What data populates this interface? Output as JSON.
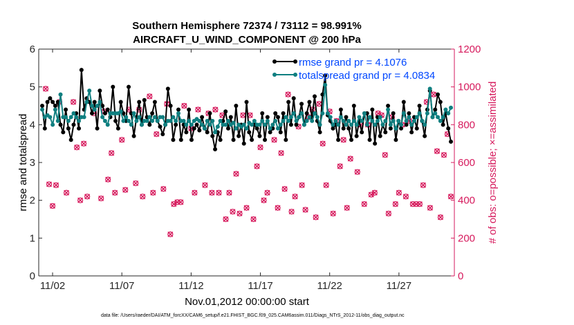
{
  "chart_data": {
    "type": "line",
    "title": "Southern Hemisphere 72374 / 73112 = 98.991%",
    "subtitle": "AIRCRAFT_U_WIND_COMPONENT @ 200 hPa",
    "xlabel": "Nov.01,2012 00:00:00 start",
    "ylabel": "rmse and totalspread",
    "y2label": "# of obs: o=possible; ×=assimilated",
    "footnote": "data file: /Users/raeder/DAI/ATM_forcXX/CAM6_setup/f.e21.FHIST_BGC.f09_025.CAM6assim.011/Diags_NTrS_2012-11/obs_diag_output.nc",
    "xlim": [
      0.5,
      30.5
    ],
    "ylim": [
      0,
      6
    ],
    "y2lim": [
      0,
      1200
    ],
    "x_ticks": [
      1.5,
      6.5,
      11.5,
      16.5,
      21.5,
      26.5
    ],
    "x_tick_labels": [
      "11/02",
      "11/07",
      "11/12",
      "11/17",
      "11/22",
      "11/27"
    ],
    "y_ticks": [
      0,
      1,
      2,
      3,
      4,
      5,
      6
    ],
    "y_tick_labels": [
      "0",
      "1",
      "2",
      "3",
      "4",
      "5",
      "6"
    ],
    "y2_ticks": [
      0,
      200,
      400,
      600,
      800,
      1000,
      1200
    ],
    "y2_tick_labels": [
      "0",
      "200",
      "400",
      "600",
      "800",
      "1000",
      "1200"
    ],
    "colors": {
      "rmse": "#000000",
      "spread": "#0f7f80",
      "obs": "#d6195c",
      "legend_text": "#0047ff"
    },
    "series": [
      {
        "name": "rmse grand pr = 4.1076",
        "color": "#000000",
        "values": [
          4.5,
          3.9,
          4.6,
          4.7,
          4.6,
          4.5,
          4.6,
          4.0,
          3.8,
          4.4,
          3.9,
          3.6,
          4.0,
          4.3,
          3.9,
          5.45,
          4.4,
          4.7,
          4.6,
          4.3,
          4.6,
          3.9,
          4.9,
          4.5,
          4.3,
          4.4,
          4.2,
          5.0,
          4.1,
          3.9,
          4.6,
          4.3,
          4.1,
          5.0,
          4.3,
          3.7,
          4.2,
          4.6,
          4.0,
          4.65,
          4.2,
          4.0,
          4.3,
          4.6,
          4.1,
          3.95,
          3.75,
          4.0,
          4.95,
          4.5,
          3.6,
          4.0,
          4.4,
          3.6,
          4.0,
          3.8,
          4.4,
          3.6,
          3.9,
          4.0,
          3.85,
          4.2,
          3.9,
          3.8,
          4.3,
          3.7,
          3.35,
          3.8,
          3.6,
          4.1,
          4.35,
          3.9,
          4.2,
          3.6,
          4.5,
          3.7,
          4.0,
          3.5,
          4.6,
          3.8,
          3.6,
          4.0,
          3.9,
          3.7,
          4.3,
          3.6,
          4.2,
          3.8,
          3.9,
          4.3,
          4.2,
          3.8,
          4.3,
          3.6,
          4.6,
          4.0,
          4.7,
          4.0,
          4.2,
          4.55,
          4.0,
          4.3,
          4.6,
          4.2,
          4.75,
          4.1,
          3.8,
          4.8,
          5.3,
          4.25,
          4.1,
          3.9,
          4.0,
          3.6,
          4.4,
          3.9,
          4.2,
          3.9,
          3.6,
          4.5,
          3.7,
          4.1,
          3.8,
          4.3,
          4.3,
          3.6,
          4.4,
          3.5,
          4.2,
          3.7,
          4.0,
          3.8,
          4.5,
          3.9,
          4.3,
          3.6,
          4.1,
          3.9,
          4.6,
          4.0,
          4.3,
          3.8,
          4.2,
          3.9,
          4.5,
          4.1,
          3.7,
          4.4,
          4.9,
          4.2,
          4.4,
          4.8,
          4.6,
          4.0,
          4.3,
          3.9,
          3.55
        ],
        "marker": "filled-circle"
      },
      {
        "name": "totalspread grand pr = 4.0834",
        "color": "#0f7f80",
        "values": [
          4.4,
          4.2,
          4.25,
          4.2,
          4.0,
          4.4,
          4.1,
          4.8,
          4.2,
          4.2,
          4.1,
          4.2,
          4.3,
          4.2,
          4.1,
          4.2,
          4.2,
          4.6,
          4.9,
          4.5,
          4.4,
          4.5,
          4.6,
          4.2,
          4.1,
          4.0,
          4.3,
          4.3,
          4.3,
          4.3,
          4.35,
          4.1,
          4.2,
          4.1,
          4.0,
          4.3,
          4.1,
          4.2,
          4.0,
          4.1,
          4.1,
          4.2,
          4.1,
          4.2,
          4.1,
          4.2,
          4.2,
          4.0,
          4.1,
          4.1,
          4.2,
          4.1,
          4.3,
          4.1,
          4.1,
          4.0,
          4.1,
          4.0,
          4.1,
          4.15,
          4.1,
          4.0,
          3.9,
          4.1,
          4.0,
          4.1,
          3.8,
          3.95,
          4.1,
          4.0,
          4.0,
          4.1,
          4.0,
          4.05,
          3.9,
          4.0,
          3.95,
          4.0,
          3.9,
          4.05,
          4.0,
          4.1,
          4.0,
          4.0,
          4.1,
          4.0,
          4.1,
          3.9,
          4.0,
          4.1,
          3.9,
          4.0,
          4.1,
          4.2,
          4.1,
          4.2,
          4.3,
          4.1,
          4.2,
          4.3,
          4.0,
          4.1,
          4.2,
          4.1,
          4.3,
          4.2,
          4.0,
          4.3,
          5.05,
          4.3,
          4.2,
          4.0,
          4.1,
          4.0,
          4.2,
          4.1,
          4.0,
          4.1,
          4.0,
          4.1,
          4.0,
          4.2,
          4.1,
          4.3,
          4.0,
          4.2,
          4.1,
          4.0,
          4.1,
          4.2,
          4.0,
          4.1,
          4.4,
          4.0,
          4.1,
          3.9,
          4.1,
          4.0,
          4.3,
          4.1,
          4.2,
          4.0,
          4.1,
          4.2,
          4.3,
          4.1,
          4.0,
          4.3,
          4.95,
          4.2,
          4.3,
          4.2,
          4.1,
          4.2,
          4.4,
          4.3,
          4.45
        ],
        "marker": "filled-circle"
      }
    ],
    "obs_count_series": {
      "name": "# of obs (right axis)",
      "color": "#d6195c",
      "x": [
        1,
        1.25,
        1.5,
        1.75,
        2,
        2.5,
        3,
        3.25,
        3.5,
        3.75,
        4,
        4.5,
        5,
        5.25,
        5.5,
        5.75,
        6,
        6.5,
        6.75,
        7,
        7.5,
        7.75,
        8,
        8.5,
        8.75,
        9,
        9.5,
        9.75,
        10,
        10.25,
        10.5,
        10.75,
        11,
        11.5,
        11.75,
        12,
        12.5,
        12.75,
        13,
        13.25,
        13.5,
        13.75,
        14,
        14.25,
        14.5,
        14.75,
        15,
        15.25,
        15.5,
        15.75,
        16,
        16.25,
        16.5,
        16.75,
        17,
        17.5,
        17.75,
        18,
        18.25,
        18.5,
        18.75,
        19,
        19.25,
        19.5,
        19.75,
        20,
        20.25,
        20.5,
        20.75,
        21,
        21.25,
        21.5,
        21.75,
        22,
        22.25,
        22.5,
        22.75,
        23,
        23.5,
        23.75,
        24,
        24.25,
        24.5,
        24.75,
        25,
        25.25,
        25.5,
        25.75,
        26,
        26.25,
        26.5,
        26.75,
        27,
        27.25,
        27.5,
        27.75,
        28,
        28.25,
        28.5,
        28.75,
        29,
        29.25,
        29.5,
        29.75,
        30,
        30.25
      ],
      "possible": [
        990,
        485,
        370,
        480,
        920,
        440,
        920,
        680,
        400,
        700,
        420,
        860,
        410,
        870,
        510,
        650,
        440,
        720,
        455,
        880,
        490,
        880,
        420,
        950,
        440,
        750,
        460,
        910,
        220,
        380,
        390,
        390,
        900,
        780,
        440,
        880,
        480,
        860,
        440,
        880,
        440,
        850,
        300,
        440,
        340,
        540,
        330,
        850,
        360,
        850,
        300,
        580,
        680,
        400,
        440,
        720,
        360,
        650,
        460,
        960,
        340,
        420,
        790,
        480,
        350,
        840,
        880,
        310,
        910,
        700,
        480,
        870,
        330,
        820,
        580,
        720,
        360,
        620,
        550,
        800,
        380,
        800,
        430,
        440,
        860,
        850,
        640,
        330,
        840,
        380,
        440,
        800,
        420,
        820,
        380,
        380,
        380,
        480,
        920,
        360,
        960,
        660,
        310,
        640,
        750,
        420,
        400,
        0
      ]
    }
  }
}
